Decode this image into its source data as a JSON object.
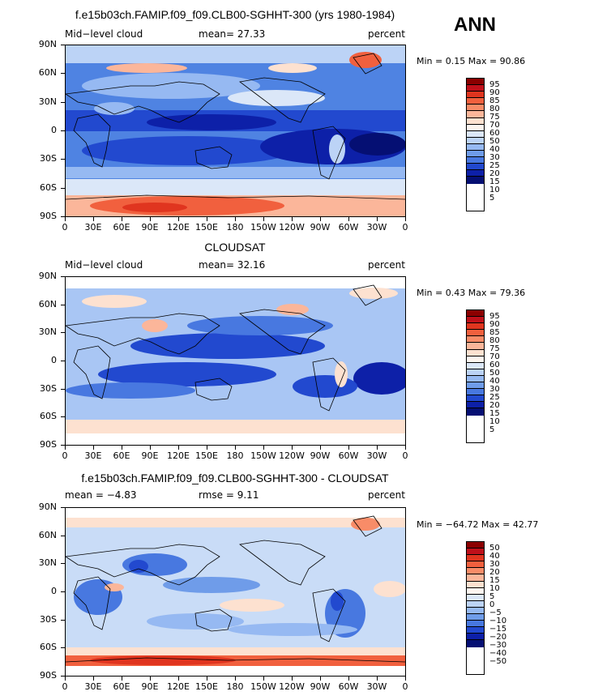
{
  "season": "ANN",
  "panels": [
    {
      "title": "f.e15b03ch.FAMIP.f09_f09.CLB00-SGHHT-300 (yrs 1980-1984)",
      "left_label": "Mid−level cloud",
      "mean_text": "mean=   27.33",
      "right_label": "percent",
      "minmax": "Min =    0.15 Max =  90.86",
      "levels": [
        "95",
        "90",
        "85",
        "80",
        "75",
        "70",
        "60",
        "50",
        "40",
        "30",
        "25",
        "20",
        "15",
        "10",
        "5"
      ],
      "colors": [
        "#8b0000",
        "#c0101a",
        "#e0351f",
        "#f1603e",
        "#f88c68",
        "#fbb69a",
        "#fde1d0",
        "#fdf5ef",
        "#dbe7f8",
        "#bcd3f6",
        "#96b9f2",
        "#6f9ce9",
        "#4878e0",
        "#2249cf",
        "#0d20a8",
        "#050f73"
      ],
      "bg": "#4f83e2"
    },
    {
      "title": "CLOUDSAT",
      "left_label": "Mid−level cloud",
      "mean_text": "mean=   32.16",
      "right_label": "percent",
      "minmax": "Min =    0.43 Max =  79.36",
      "levels": [
        "95",
        "90",
        "85",
        "80",
        "75",
        "70",
        "60",
        "50",
        "40",
        "30",
        "25",
        "20",
        "15",
        "10",
        "5"
      ],
      "colors": [
        "#8b0000",
        "#c0101a",
        "#e0351f",
        "#f1603e",
        "#f88c68",
        "#fbb69a",
        "#fde1d0",
        "#fdf5ef",
        "#dbe7f8",
        "#bcd3f6",
        "#96b9f2",
        "#6f9ce9",
        "#4878e0",
        "#2249cf",
        "#0d20a8",
        "#050f73"
      ],
      "bg": "#a9c6f4"
    },
    {
      "title": "f.e15b03ch.FAMIP.f09_f09.CLB00-SGHHT-300 - CLOUDSAT",
      "left_label": "mean =   −4.83",
      "mean_text": "rmse =    9.11",
      "right_label": "percent",
      "minmax": "Min = −64.72 Max =  42.77",
      "levels": [
        "50",
        "40",
        "30",
        "20",
        "15",
        "10",
        "5",
        "0",
        "−5",
        "−10",
        "−15",
        "−20",
        "−30",
        "−40",
        "−50"
      ],
      "colors": [
        "#8b0000",
        "#c0101a",
        "#e0351f",
        "#f1603e",
        "#f88c68",
        "#fbb69a",
        "#fde1d0",
        "#fdf5ef",
        "#dbe7f8",
        "#bcd3f6",
        "#96b9f2",
        "#6f9ce9",
        "#4878e0",
        "#2249cf",
        "#0d20a8",
        "#050f73"
      ],
      "bg": "#c9dcf7"
    }
  ],
  "lat_labels": [
    "90N",
    "60N",
    "30N",
    "0",
    "30S",
    "60S",
    "90S"
  ],
  "lon_labels": [
    "0",
    "30E",
    "60E",
    "90E",
    "120E",
    "150E",
    "180",
    "150W",
    "120W",
    "90W",
    "60W",
    "30W",
    "0"
  ]
}
